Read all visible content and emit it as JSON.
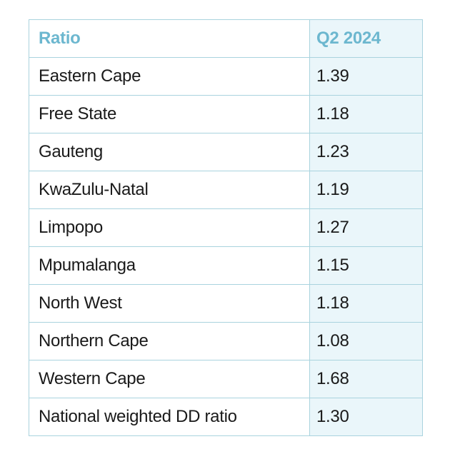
{
  "table": {
    "headers": [
      "Ratio",
      "Q2 2024"
    ],
    "rows": [
      {
        "label": "Eastern Cape",
        "value": "1.39"
      },
      {
        "label": "Free State",
        "value": "1.18"
      },
      {
        "label": "Gauteng",
        "value": "1.23"
      },
      {
        "label": "KwaZulu-Natal",
        "value": "1.19"
      },
      {
        "label": "Limpopo",
        "value": "1.27"
      },
      {
        "label": "Mpumalanga",
        "value": "1.15"
      },
      {
        "label": "North West",
        "value": "1.18"
      },
      {
        "label": "Northern Cape",
        "value": "1.08"
      },
      {
        "label": "Western Cape",
        "value": "1.68"
      },
      {
        "label": "National weighted DD ratio",
        "value": "1.30"
      }
    ]
  },
  "colors": {
    "header_text": "#6cb7cf",
    "border": "#a9d3de",
    "shaded_cell": "#eaf6fa",
    "body_text": "#1a1a1a"
  }
}
